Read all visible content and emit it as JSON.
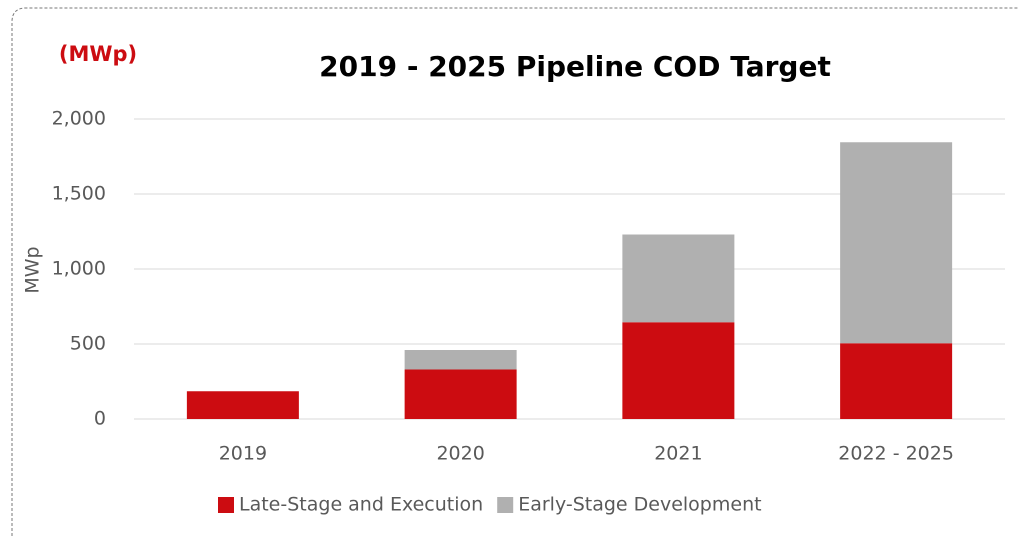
{
  "chart_data": {
    "type": "stacked_bar",
    "title": "2019 - 2025 Pipeline COD Target",
    "annotation": "(MWp)",
    "y_label": "MWp",
    "categories": [
      "2019",
      "2020",
      "2021",
      "2022 - 2025"
    ],
    "series": [
      {
        "name": "Late-Stage and Execution",
        "color": "#cc0c11",
        "values": [
          185,
          330,
          645,
          505
        ]
      },
      {
        "name": "Early-Stage Development",
        "color": "#b0b0b0",
        "values": [
          0,
          130,
          585,
          1340
        ]
      }
    ],
    "ylim": [
      0,
      2000
    ],
    "yticks": [
      0,
      500,
      {
        "value": 1000,
        "label": "1,000"
      },
      {
        "value": 1500,
        "label": "1,500"
      },
      {
        "value": 2000,
        "label": "2,000"
      }
    ],
    "grid": true,
    "legend": "bottom"
  }
}
